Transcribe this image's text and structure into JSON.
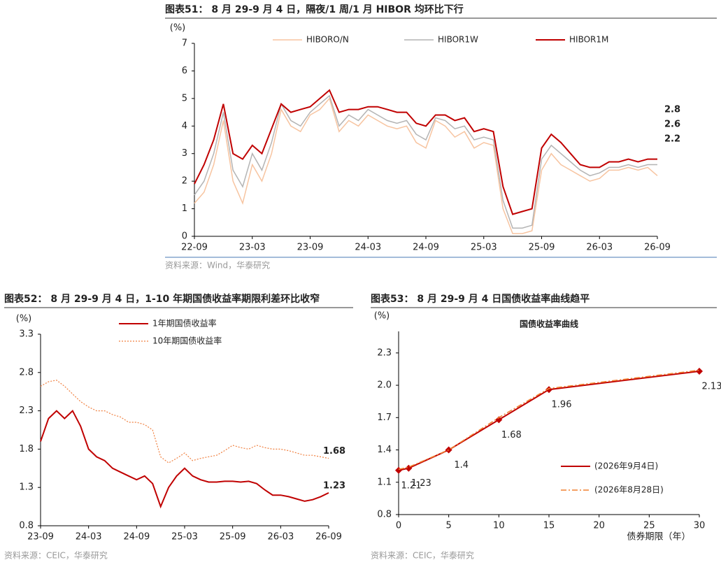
{
  "chart_data": [
    {
      "type": "line",
      "title": "图表51：  8 月 29-9 月 4 日，隔夜/1 周/1 月 HIBOR 均环比下行",
      "source": "资料来源：Wind，华泰研究",
      "ylabel": "(%)",
      "legend": "top",
      "categories": [
        "22-09",
        "22-10",
        "22-11",
        "22-12",
        "23-01",
        "23-02",
        "23-03",
        "23-04",
        "23-05",
        "23-06",
        "23-07",
        "23-08",
        "23-09",
        "23-10",
        "23-11",
        "23-12",
        "24-01",
        "24-02",
        "24-03",
        "24-04",
        "24-05",
        "24-06",
        "24-07",
        "24-08",
        "24-09",
        "24-10",
        "24-11",
        "24-12",
        "25-01",
        "25-02",
        "25-03",
        "25-04",
        "25-05",
        "25-06",
        "25-07",
        "25-08",
        "25-09",
        "25-10",
        "25-11",
        "25-12",
        "26-01",
        "26-02",
        "26-03",
        "26-04",
        "26-05",
        "26-06",
        "26-07",
        "26-08",
        "26-09"
      ],
      "xticks": [
        "22-09",
        "23-03",
        "23-09",
        "24-03",
        "24-09",
        "25-03",
        "25-09",
        "26-03",
        "26-09"
      ],
      "ylim": [
        0,
        7
      ],
      "yticks": [
        0,
        1,
        2,
        3,
        4,
        5,
        6,
        7
      ],
      "series": [
        {
          "name": "HIBORO/N",
          "color": "#f7c4a0",
          "width": 1.5,
          "end_label": "2.2",
          "values": [
            1.2,
            1.6,
            2.6,
            4.2,
            2.0,
            1.2,
            2.6,
            2.0,
            3.0,
            4.6,
            4.0,
            3.8,
            4.4,
            4.6,
            5.0,
            3.8,
            4.2,
            4.0,
            4.4,
            4.2,
            4.0,
            3.9,
            4.0,
            3.4,
            3.2,
            4.2,
            4.0,
            3.6,
            3.8,
            3.2,
            3.4,
            3.3,
            1.0,
            0.1,
            0.1,
            0.2,
            2.4,
            3.0,
            2.6,
            2.4,
            2.2,
            2.0,
            2.1,
            2.4,
            2.4,
            2.5,
            2.4,
            2.5,
            2.2
          ]
        },
        {
          "name": "HIBOR1W",
          "color": "#b4b4b4",
          "width": 1.5,
          "end_label": "2.6",
          "values": [
            1.5,
            2.0,
            3.0,
            4.5,
            2.4,
            1.8,
            3.0,
            2.4,
            3.4,
            4.8,
            4.2,
            4.0,
            4.5,
            4.8,
            5.1,
            4.0,
            4.4,
            4.2,
            4.6,
            4.4,
            4.2,
            4.1,
            4.2,
            3.7,
            3.5,
            4.3,
            4.2,
            3.9,
            4.0,
            3.5,
            3.6,
            3.5,
            1.3,
            0.3,
            0.3,
            0.4,
            2.8,
            3.3,
            3.0,
            2.7,
            2.4,
            2.2,
            2.3,
            2.5,
            2.5,
            2.6,
            2.5,
            2.6,
            2.6
          ]
        },
        {
          "name": "HIBOR1M",
          "color": "#c00000",
          "width": 2,
          "end_label": "2.8",
          "values": [
            1.9,
            2.6,
            3.5,
            4.8,
            3.0,
            2.8,
            3.3,
            3.0,
            3.9,
            4.8,
            4.5,
            4.6,
            4.7,
            5.0,
            5.3,
            4.5,
            4.6,
            4.6,
            4.7,
            4.7,
            4.6,
            4.5,
            4.5,
            4.1,
            4.0,
            4.4,
            4.4,
            4.2,
            4.3,
            3.8,
            3.9,
            3.8,
            1.8,
            0.8,
            0.9,
            1.0,
            3.2,
            3.7,
            3.4,
            3.0,
            2.6,
            2.5,
            2.5,
            2.7,
            2.7,
            2.8,
            2.7,
            2.8,
            2.8
          ]
        }
      ]
    },
    {
      "type": "line",
      "title": "图表52：  8 月 29-9 月 4 日，1-10 年期国债收益率期限利差环比收窄",
      "source": "资料来源：CEIC，华泰研究",
      "ylabel": "(%)",
      "legend": "upper left",
      "categories": [
        "23-09",
        "23-10",
        "23-11",
        "23-12",
        "24-01",
        "24-02",
        "24-03",
        "24-04",
        "24-05",
        "24-06",
        "24-07",
        "24-08",
        "24-09",
        "24-10",
        "24-11",
        "24-12",
        "25-01",
        "25-02",
        "25-03",
        "25-04",
        "25-05",
        "25-06",
        "25-07",
        "25-08",
        "25-09",
        "25-10",
        "25-11",
        "25-12",
        "26-01",
        "26-02",
        "26-03",
        "26-04",
        "26-05",
        "26-06",
        "26-07",
        "26-08",
        "26-09"
      ],
      "xticks": [
        "23-09",
        "24-03",
        "24-09",
        "25-03",
        "25-09",
        "26-03",
        "26-09"
      ],
      "ylim": [
        0.8,
        3.3
      ],
      "yticks": [
        0.8,
        1.3,
        1.8,
        2.3,
        2.8,
        3.3
      ],
      "series": [
        {
          "name": "1年期国债收益率",
          "color": "#c00000",
          "width": 2,
          "dash": "",
          "end_label": "1.23",
          "values": [
            1.9,
            2.2,
            2.3,
            2.2,
            2.3,
            2.1,
            1.8,
            1.7,
            1.65,
            1.55,
            1.5,
            1.45,
            1.4,
            1.45,
            1.35,
            1.05,
            1.3,
            1.45,
            1.55,
            1.45,
            1.4,
            1.37,
            1.37,
            1.38,
            1.38,
            1.37,
            1.38,
            1.35,
            1.27,
            1.2,
            1.2,
            1.18,
            1.15,
            1.12,
            1.14,
            1.18,
            1.23
          ]
        },
        {
          "name": "10年期国债收益率",
          "color": "#f08040",
          "width": 1.2,
          "dash": "2,2",
          "end_label": "1.68",
          "values": [
            2.62,
            2.68,
            2.7,
            2.62,
            2.52,
            2.42,
            2.35,
            2.3,
            2.3,
            2.25,
            2.22,
            2.15,
            2.15,
            2.12,
            2.05,
            1.7,
            1.62,
            1.68,
            1.75,
            1.65,
            1.68,
            1.7,
            1.72,
            1.78,
            1.85,
            1.82,
            1.8,
            1.85,
            1.82,
            1.8,
            1.8,
            1.78,
            1.75,
            1.72,
            1.72,
            1.7,
            1.68
          ]
        }
      ]
    },
    {
      "type": "curve",
      "title": "图表53：  8 月 29-9 月 4 日国债收益率曲线趋平",
      "source": "资料来源：CEIC，华泰研究",
      "subtitle": "国债收益率曲线",
      "ylabel": "(%)",
      "xlabel": "债券期限（年）",
      "legend": "lower right",
      "x": [
        0,
        1,
        5,
        10,
        15,
        30
      ],
      "xlim": [
        0,
        30
      ],
      "xticks": [
        0,
        5,
        10,
        15,
        20,
        25,
        30
      ],
      "ylim": [
        0.8,
        2.5
      ],
      "yticks": [
        0.8,
        1.1,
        1.4,
        1.7,
        {
          "value": 2,
          "label": "2.0"
        },
        2.3
      ],
      "series": [
        {
          "name": "(2026年9月4日)",
          "color": "#c00000",
          "width": 2,
          "dash": "",
          "markers": true,
          "values": [
            1.21,
            1.23,
            1.4,
            1.68,
            1.96,
            2.13
          ]
        },
        {
          "name": "(2026年8月28日)",
          "color": "#f08030",
          "width": 1.6,
          "dash": "8,3,2,3",
          "markers": false,
          "values": [
            1.22,
            1.24,
            1.4,
            1.7,
            1.97,
            2.14
          ]
        }
      ]
    }
  ]
}
